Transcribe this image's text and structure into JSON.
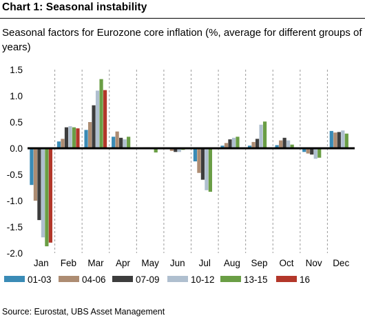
{
  "title": "Chart 1: Seasonal instability",
  "subtitle": "Seasonal factors for Eurozone core inflation (%, average for different groups of years)",
  "source": "Source: Eurostat, UBS Asset Management",
  "chart_data": {
    "type": "bar",
    "categories": [
      "Jan",
      "Feb",
      "Mar",
      "Apr",
      "May",
      "Jun",
      "Jul",
      "Aug",
      "Sep",
      "Oct",
      "Nov",
      "Dec"
    ],
    "series": [
      {
        "name": "01-03",
        "color": "#3a8bb6",
        "values": [
          -0.7,
          0.13,
          0.35,
          0.22,
          0.0,
          0.0,
          -0.25,
          0.05,
          0.05,
          0.06,
          -0.07,
          0.33
        ]
      },
      {
        "name": "04-06",
        "color": "#ad8c72",
        "values": [
          -1.0,
          0.18,
          0.5,
          0.32,
          0.02,
          -0.05,
          -0.47,
          0.1,
          0.12,
          0.15,
          -0.1,
          0.3
        ]
      },
      {
        "name": "07-09",
        "color": "#3d3d3d",
        "values": [
          -1.37,
          0.4,
          0.82,
          0.2,
          0.02,
          -0.07,
          -0.6,
          0.17,
          0.18,
          0.2,
          -0.12,
          0.31
        ]
      },
      {
        "name": "10-12",
        "color": "#afbfcf",
        "values": [
          -1.7,
          0.42,
          1.1,
          0.17,
          0.0,
          -0.07,
          -0.8,
          0.2,
          0.45,
          0.15,
          -0.2,
          0.34
        ]
      },
      {
        "name": "13-15",
        "color": "#6a9e45",
        "values": [
          -1.87,
          0.4,
          1.32,
          0.22,
          -0.08,
          -0.03,
          -0.83,
          0.22,
          0.51,
          0.07,
          -0.18,
          0.28
        ]
      },
      {
        "name": "16",
        "color": "#b3372a",
        "values": [
          -1.8,
          0.38,
          1.11,
          null,
          null,
          null,
          null,
          null,
          null,
          null,
          null,
          null
        ]
      }
    ],
    "yticks": [
      "1.5",
      "1.0",
      "0.5",
      "0.0",
      "-0.5",
      "-1.0",
      "-1.5",
      "-2.0"
    ],
    "ylim": [
      -2.0,
      1.5
    ],
    "grid": "vertical dashed",
    "legend": "bottom"
  }
}
